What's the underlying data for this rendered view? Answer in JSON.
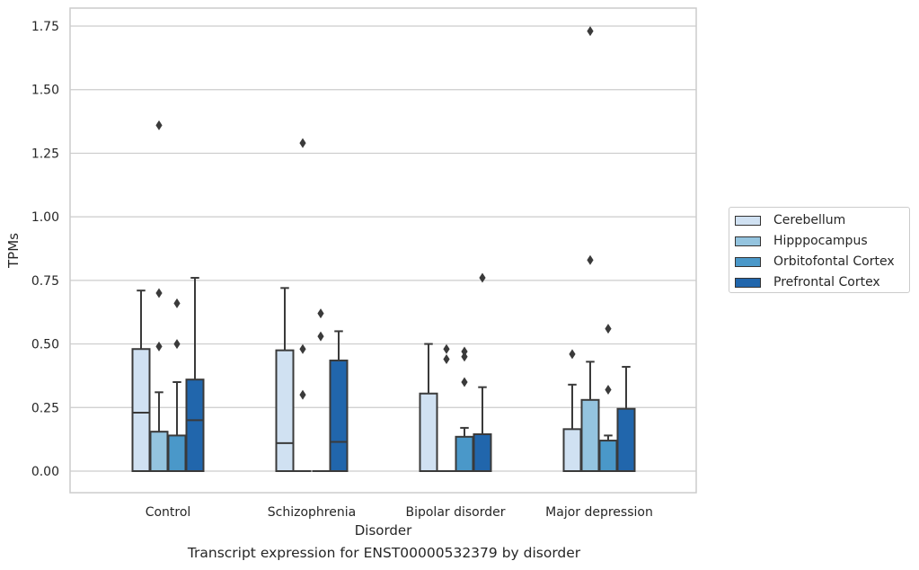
{
  "chart_data": {
    "type": "box",
    "xlabel": "Disorder",
    "ylabel": "TPMs",
    "caption": "Transcript expression for ENST00000532379 by disorder",
    "ylim": [
      -0.085,
      1.82
    ],
    "yticks": [
      "0.00",
      "0.25",
      "0.50",
      "0.75",
      "1.00",
      "1.25",
      "1.50",
      "1.75"
    ],
    "grid": "horizontal",
    "legend_position": "right",
    "categories": [
      "Control",
      "Schizophrenia",
      "Bipolar disorder",
      "Major depression"
    ],
    "series": [
      {
        "name": "Cerebellum",
        "color": "#d0e1f2",
        "boxes": [
          {
            "whislo": 0.0,
            "q1": 0.0,
            "med": 0.23,
            "q3": 0.48,
            "whishi": 0.71,
            "fliers": []
          },
          {
            "whislo": 0.0,
            "q1": 0.0,
            "med": 0.11,
            "q3": 0.475,
            "whishi": 0.72,
            "fliers": []
          },
          {
            "whislo": 0.0,
            "q1": 0.0,
            "med": 0.0,
            "q3": 0.305,
            "whishi": 0.5,
            "fliers": []
          },
          {
            "whislo": 0.0,
            "q1": 0.0,
            "med": 0.0,
            "q3": 0.165,
            "whishi": 0.34,
            "fliers": [
              0.46
            ]
          }
        ]
      },
      {
        "name": "Hipppocampus",
        "color": "#94c4df",
        "boxes": [
          {
            "whislo": 0.0,
            "q1": 0.0,
            "med": 0.0,
            "q3": 0.155,
            "whishi": 0.31,
            "fliers": [
              0.49,
              0.7,
              1.36
            ]
          },
          {
            "whislo": 0.0,
            "q1": 0.0,
            "med": 0.0,
            "q3": 0.0,
            "whishi": 0.0,
            "fliers": [
              0.3,
              0.48,
              1.29
            ]
          },
          {
            "whislo": 0.0,
            "q1": 0.0,
            "med": 0.0,
            "q3": 0.0,
            "whishi": 0.0,
            "fliers": [
              0.44,
              0.48
            ]
          },
          {
            "whislo": 0.0,
            "q1": 0.0,
            "med": 0.0,
            "q3": 0.28,
            "whishi": 0.43,
            "fliers": [
              0.83,
              1.73
            ]
          }
        ]
      },
      {
        "name": "Orbitofontal Cortex",
        "color": "#4a98c9",
        "boxes": [
          {
            "whislo": 0.0,
            "q1": 0.0,
            "med": 0.0,
            "q3": 0.14,
            "whishi": 0.35,
            "fliers": [
              0.5,
              0.66
            ]
          },
          {
            "whislo": 0.0,
            "q1": 0.0,
            "med": 0.0,
            "q3": 0.0,
            "whishi": 0.0,
            "fliers": [
              0.53,
              0.62
            ]
          },
          {
            "whislo": 0.0,
            "q1": 0.0,
            "med": 0.0,
            "q3": 0.135,
            "whishi": 0.17,
            "fliers": [
              0.35,
              0.45,
              0.47
            ]
          },
          {
            "whislo": 0.0,
            "q1": 0.0,
            "med": 0.0,
            "q3": 0.12,
            "whishi": 0.14,
            "fliers": [
              0.32,
              0.56
            ]
          }
        ]
      },
      {
        "name": "Prefrontal Cortex",
        "color": "#2166ac",
        "boxes": [
          {
            "whislo": 0.0,
            "q1": 0.0,
            "med": 0.2,
            "q3": 0.36,
            "whishi": 0.76,
            "fliers": []
          },
          {
            "whislo": 0.0,
            "q1": 0.0,
            "med": 0.115,
            "q3": 0.435,
            "whishi": 0.55,
            "fliers": []
          },
          {
            "whislo": 0.0,
            "q1": 0.0,
            "med": 0.0,
            "q3": 0.145,
            "whishi": 0.33,
            "fliers": [
              0.76
            ]
          },
          {
            "whislo": 0.0,
            "q1": 0.0,
            "med": 0.0,
            "q3": 0.245,
            "whishi": 0.41,
            "fliers": []
          }
        ]
      }
    ]
  }
}
